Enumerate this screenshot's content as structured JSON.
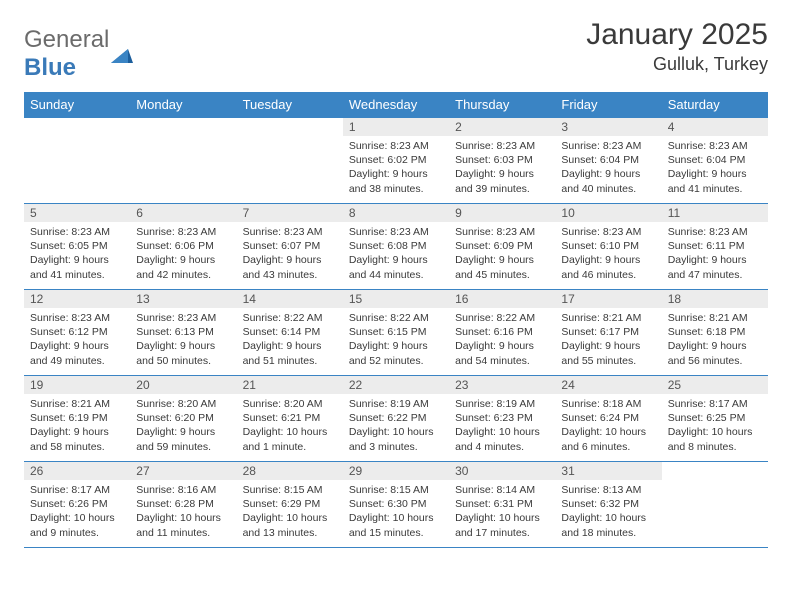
{
  "brand": {
    "part1": "General",
    "part2": "Blue"
  },
  "title": "January 2025",
  "location": "Gulluk, Turkey",
  "day_headers": [
    "Sunday",
    "Monday",
    "Tuesday",
    "Wednesday",
    "Thursday",
    "Friday",
    "Saturday"
  ],
  "colors": {
    "header_bg": "#3a84c4",
    "daynum_bg": "#ececec",
    "border": "#3a84c4",
    "text": "#3a3a3a",
    "logo_gray": "#6b6b6b",
    "logo_blue": "#3a7ab8"
  },
  "weeks": [
    [
      null,
      null,
      null,
      {
        "n": "1",
        "sunrise": "Sunrise: 8:23 AM",
        "sunset": "Sunset: 6:02 PM",
        "d1": "Daylight: 9 hours",
        "d2": "and 38 minutes."
      },
      {
        "n": "2",
        "sunrise": "Sunrise: 8:23 AM",
        "sunset": "Sunset: 6:03 PM",
        "d1": "Daylight: 9 hours",
        "d2": "and 39 minutes."
      },
      {
        "n": "3",
        "sunrise": "Sunrise: 8:23 AM",
        "sunset": "Sunset: 6:04 PM",
        "d1": "Daylight: 9 hours",
        "d2": "and 40 minutes."
      },
      {
        "n": "4",
        "sunrise": "Sunrise: 8:23 AM",
        "sunset": "Sunset: 6:04 PM",
        "d1": "Daylight: 9 hours",
        "d2": "and 41 minutes."
      }
    ],
    [
      {
        "n": "5",
        "sunrise": "Sunrise: 8:23 AM",
        "sunset": "Sunset: 6:05 PM",
        "d1": "Daylight: 9 hours",
        "d2": "and 41 minutes."
      },
      {
        "n": "6",
        "sunrise": "Sunrise: 8:23 AM",
        "sunset": "Sunset: 6:06 PM",
        "d1": "Daylight: 9 hours",
        "d2": "and 42 minutes."
      },
      {
        "n": "7",
        "sunrise": "Sunrise: 8:23 AM",
        "sunset": "Sunset: 6:07 PM",
        "d1": "Daylight: 9 hours",
        "d2": "and 43 minutes."
      },
      {
        "n": "8",
        "sunrise": "Sunrise: 8:23 AM",
        "sunset": "Sunset: 6:08 PM",
        "d1": "Daylight: 9 hours",
        "d2": "and 44 minutes."
      },
      {
        "n": "9",
        "sunrise": "Sunrise: 8:23 AM",
        "sunset": "Sunset: 6:09 PM",
        "d1": "Daylight: 9 hours",
        "d2": "and 45 minutes."
      },
      {
        "n": "10",
        "sunrise": "Sunrise: 8:23 AM",
        "sunset": "Sunset: 6:10 PM",
        "d1": "Daylight: 9 hours",
        "d2": "and 46 minutes."
      },
      {
        "n": "11",
        "sunrise": "Sunrise: 8:23 AM",
        "sunset": "Sunset: 6:11 PM",
        "d1": "Daylight: 9 hours",
        "d2": "and 47 minutes."
      }
    ],
    [
      {
        "n": "12",
        "sunrise": "Sunrise: 8:23 AM",
        "sunset": "Sunset: 6:12 PM",
        "d1": "Daylight: 9 hours",
        "d2": "and 49 minutes."
      },
      {
        "n": "13",
        "sunrise": "Sunrise: 8:23 AM",
        "sunset": "Sunset: 6:13 PM",
        "d1": "Daylight: 9 hours",
        "d2": "and 50 minutes."
      },
      {
        "n": "14",
        "sunrise": "Sunrise: 8:22 AM",
        "sunset": "Sunset: 6:14 PM",
        "d1": "Daylight: 9 hours",
        "d2": "and 51 minutes."
      },
      {
        "n": "15",
        "sunrise": "Sunrise: 8:22 AM",
        "sunset": "Sunset: 6:15 PM",
        "d1": "Daylight: 9 hours",
        "d2": "and 52 minutes."
      },
      {
        "n": "16",
        "sunrise": "Sunrise: 8:22 AM",
        "sunset": "Sunset: 6:16 PM",
        "d1": "Daylight: 9 hours",
        "d2": "and 54 minutes."
      },
      {
        "n": "17",
        "sunrise": "Sunrise: 8:21 AM",
        "sunset": "Sunset: 6:17 PM",
        "d1": "Daylight: 9 hours",
        "d2": "and 55 minutes."
      },
      {
        "n": "18",
        "sunrise": "Sunrise: 8:21 AM",
        "sunset": "Sunset: 6:18 PM",
        "d1": "Daylight: 9 hours",
        "d2": "and 56 minutes."
      }
    ],
    [
      {
        "n": "19",
        "sunrise": "Sunrise: 8:21 AM",
        "sunset": "Sunset: 6:19 PM",
        "d1": "Daylight: 9 hours",
        "d2": "and 58 minutes."
      },
      {
        "n": "20",
        "sunrise": "Sunrise: 8:20 AM",
        "sunset": "Sunset: 6:20 PM",
        "d1": "Daylight: 9 hours",
        "d2": "and 59 minutes."
      },
      {
        "n": "21",
        "sunrise": "Sunrise: 8:20 AM",
        "sunset": "Sunset: 6:21 PM",
        "d1": "Daylight: 10 hours",
        "d2": "and 1 minute."
      },
      {
        "n": "22",
        "sunrise": "Sunrise: 8:19 AM",
        "sunset": "Sunset: 6:22 PM",
        "d1": "Daylight: 10 hours",
        "d2": "and 3 minutes."
      },
      {
        "n": "23",
        "sunrise": "Sunrise: 8:19 AM",
        "sunset": "Sunset: 6:23 PM",
        "d1": "Daylight: 10 hours",
        "d2": "and 4 minutes."
      },
      {
        "n": "24",
        "sunrise": "Sunrise: 8:18 AM",
        "sunset": "Sunset: 6:24 PM",
        "d1": "Daylight: 10 hours",
        "d2": "and 6 minutes."
      },
      {
        "n": "25",
        "sunrise": "Sunrise: 8:17 AM",
        "sunset": "Sunset: 6:25 PM",
        "d1": "Daylight: 10 hours",
        "d2": "and 8 minutes."
      }
    ],
    [
      {
        "n": "26",
        "sunrise": "Sunrise: 8:17 AM",
        "sunset": "Sunset: 6:26 PM",
        "d1": "Daylight: 10 hours",
        "d2": "and 9 minutes."
      },
      {
        "n": "27",
        "sunrise": "Sunrise: 8:16 AM",
        "sunset": "Sunset: 6:28 PM",
        "d1": "Daylight: 10 hours",
        "d2": "and 11 minutes."
      },
      {
        "n": "28",
        "sunrise": "Sunrise: 8:15 AM",
        "sunset": "Sunset: 6:29 PM",
        "d1": "Daylight: 10 hours",
        "d2": "and 13 minutes."
      },
      {
        "n": "29",
        "sunrise": "Sunrise: 8:15 AM",
        "sunset": "Sunset: 6:30 PM",
        "d1": "Daylight: 10 hours",
        "d2": "and 15 minutes."
      },
      {
        "n": "30",
        "sunrise": "Sunrise: 8:14 AM",
        "sunset": "Sunset: 6:31 PM",
        "d1": "Daylight: 10 hours",
        "d2": "and 17 minutes."
      },
      {
        "n": "31",
        "sunrise": "Sunrise: 8:13 AM",
        "sunset": "Sunset: 6:32 PM",
        "d1": "Daylight: 10 hours",
        "d2": "and 18 minutes."
      },
      null
    ]
  ]
}
